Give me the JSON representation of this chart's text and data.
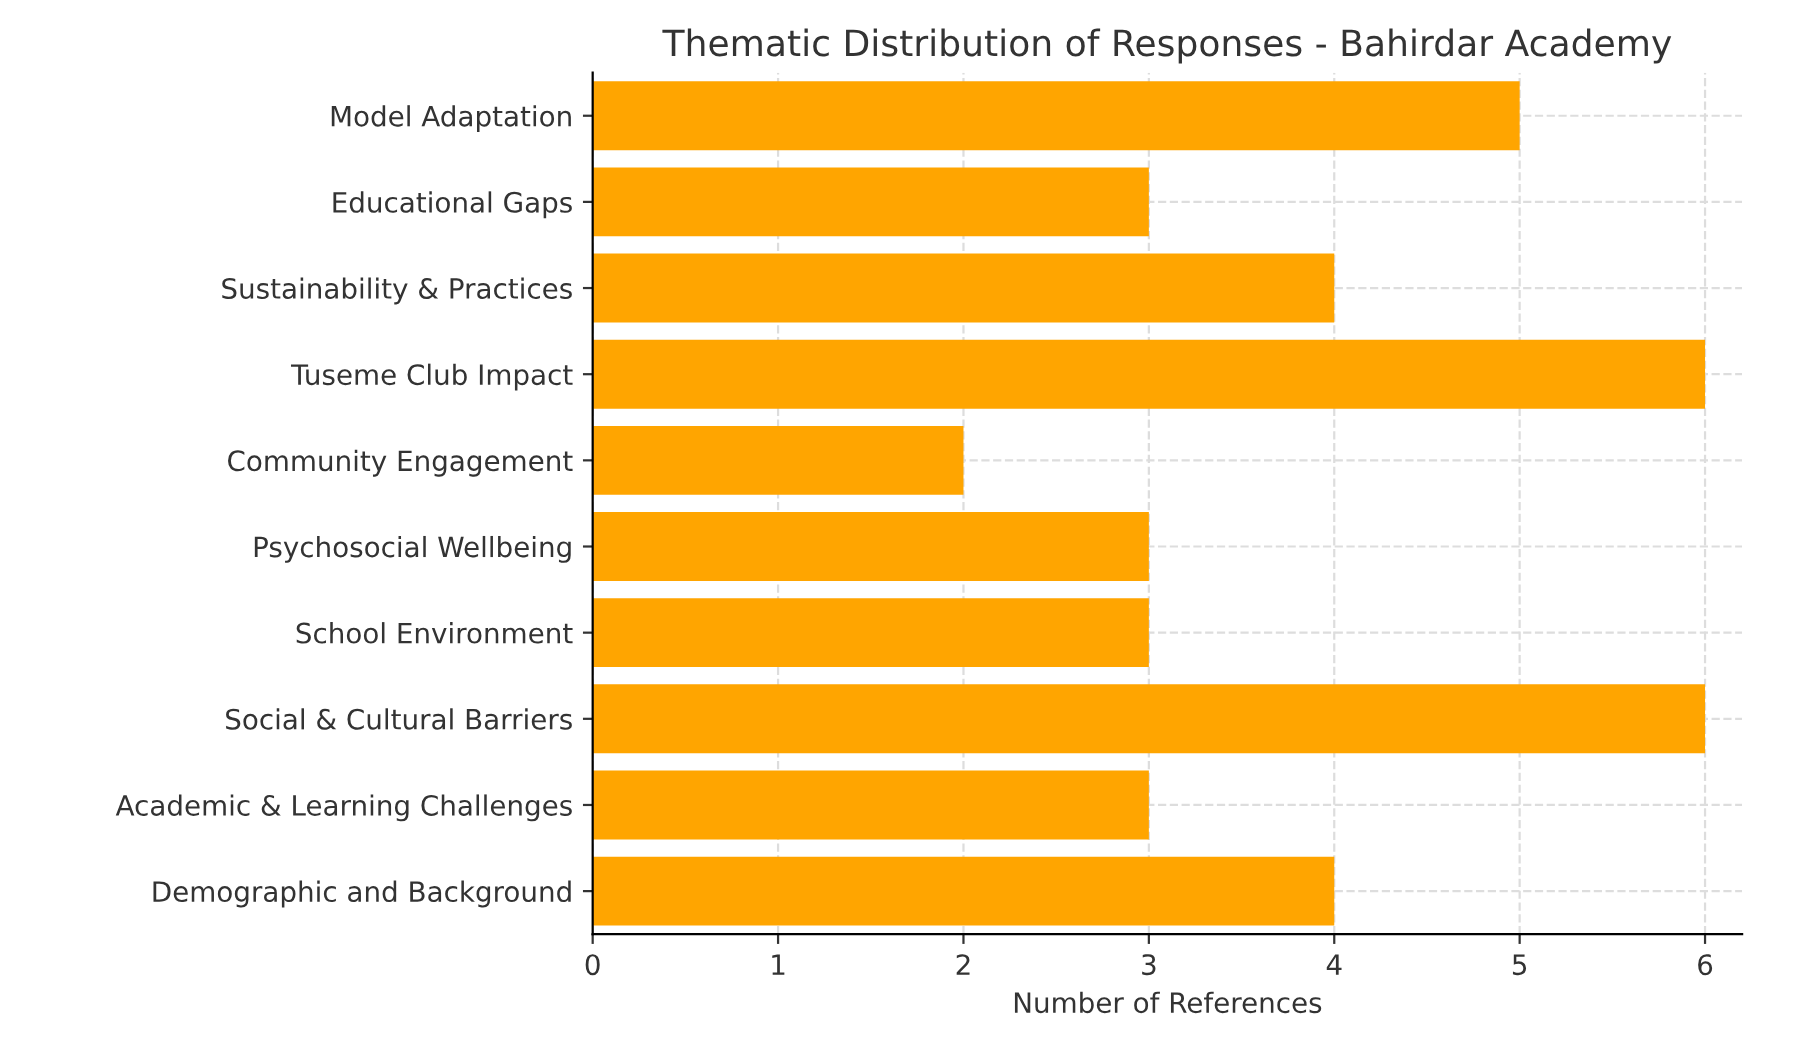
{
  "chart_data": {
    "type": "bar",
    "orientation": "horizontal",
    "title": "Thematic Distribution of Responses - Bahirdar Academy",
    "xlabel": "Number of References",
    "categories": [
      "Model Adaptation",
      "Educational Gaps",
      "Sustainability & Practices",
      "Tuseme Club Impact",
      "Community Engagement",
      "Psychosocial Wellbeing",
      "School Environment",
      "Social & Cultural Barriers",
      "Academic & Learning Challenges",
      "Demographic and Background"
    ],
    "values": [
      5,
      3,
      4,
      6,
      2,
      3,
      3,
      6,
      3,
      4
    ],
    "color": "#ffa500",
    "xlim": [
      0,
      6.2
    ],
    "xticks": [
      0,
      1,
      2,
      3,
      4,
      5,
      6
    ],
    "grid": true
  }
}
